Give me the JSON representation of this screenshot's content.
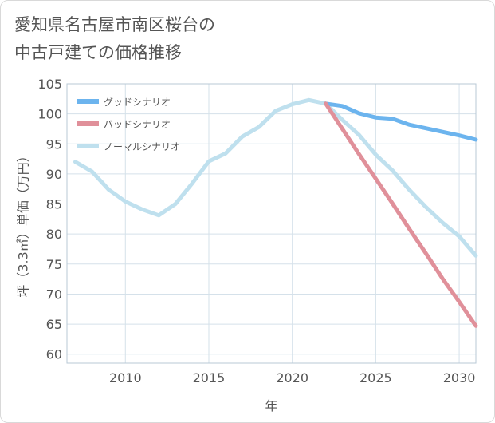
{
  "title": "愛知県名古屋市南区桜台の\n中古戸建ての価格推移",
  "chart_data": {
    "type": "line",
    "xlabel": "年",
    "ylabel": "坪（3.3㎡）単価（万円）",
    "xlim": [
      2006.5,
      2031
    ],
    "ylim": [
      58.5,
      105
    ],
    "xticks": [
      2010,
      2015,
      2020,
      2025,
      2030
    ],
    "yticks": [
      60,
      65,
      70,
      75,
      80,
      85,
      90,
      95,
      100,
      105
    ],
    "grid": true,
    "legend_position": "top-left",
    "series": [
      {
        "name": "グッドシナリオ",
        "color": "#6cb4ee",
        "x": [
          2022,
          2023,
          2024,
          2025,
          2026,
          2027,
          2028,
          2029,
          2030,
          2031
        ],
        "y": [
          101.7,
          101.3,
          100.1,
          99.4,
          99.2,
          98.2,
          97.6,
          97.0,
          96.4,
          95.7
        ]
      },
      {
        "name": "バッドシナリオ",
        "color": "#e0909a",
        "x": [
          2022,
          2023,
          2024,
          2025,
          2026,
          2027,
          2028,
          2029,
          2030,
          2031
        ],
        "y": [
          101.7,
          97.5,
          93.3,
          89.2,
          85.1,
          80.9,
          76.8,
          72.6,
          68.7,
          64.7
        ]
      },
      {
        "name": "ノーマルシナリオ",
        "color": "#bfe0ee",
        "x": [
          2007,
          2008,
          2009,
          2010,
          2011,
          2012,
          2013,
          2014,
          2015,
          2016,
          2017,
          2018,
          2019,
          2020,
          2021,
          2022,
          2023,
          2024,
          2025,
          2026,
          2027,
          2028,
          2029,
          2030,
          2031
        ],
        "y": [
          92.0,
          90.4,
          87.4,
          85.4,
          84.1,
          83.1,
          85.0,
          88.4,
          92.1,
          93.4,
          96.2,
          97.8,
          100.5,
          101.6,
          102.3,
          101.7,
          99.0,
          96.5,
          93.2,
          90.6,
          87.4,
          84.5,
          81.9,
          79.6,
          76.4
        ]
      }
    ]
  }
}
